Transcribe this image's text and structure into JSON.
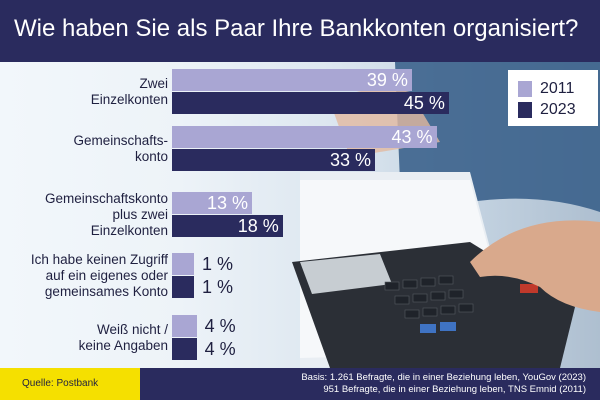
{
  "title": "Wie haben Sie als Paar Ihre Bankkonten organisiert?",
  "chart_data": {
    "type": "bar",
    "orientation": "horizontal",
    "title": "Wie haben Sie als Paar Ihre Bankkonten organisiert?",
    "categories": [
      [
        "Zwei",
        "Einzelkonten"
      ],
      [
        "Gemeinschafts-",
        "konto"
      ],
      [
        "Gemeinschaftskonto",
        "plus zwei",
        "Einzelkonten"
      ],
      [
        "Ich habe keinen Zugriff",
        "auf ein eigenes oder",
        "gemeinsames Konto"
      ],
      [
        "Weiß nicht /",
        "keine Angaben"
      ]
    ],
    "series": [
      {
        "name": "2011",
        "values": [
          39,
          43,
          13,
          1,
          4
        ],
        "labels": [
          "39 %",
          "43 %",
          "13 %",
          "1 %",
          "4 %"
        ],
        "color": "#a9a6d3"
      },
      {
        "name": "2023",
        "values": [
          45,
          33,
          18,
          1,
          4
        ],
        "labels": [
          "45 %",
          "33 %",
          "18 %",
          "1 %",
          "4 %"
        ],
        "color": "#2a2b5e"
      }
    ],
    "xlim": [
      0,
      46
    ],
    "legend": "top-right",
    "grid": false
  },
  "footer": {
    "source": "Quelle: Postbank",
    "basis": [
      "Basis: 1.261 Befragte, die in einer Beziehung leben, YouGov (2023)",
      "951 Befragte, die in einer Beziehung leben, TNS Emnid (2011)"
    ]
  },
  "colors": {
    "navy": "#2a2b5e",
    "lavender": "#a9a6d3",
    "yellow": "#f5e000"
  }
}
